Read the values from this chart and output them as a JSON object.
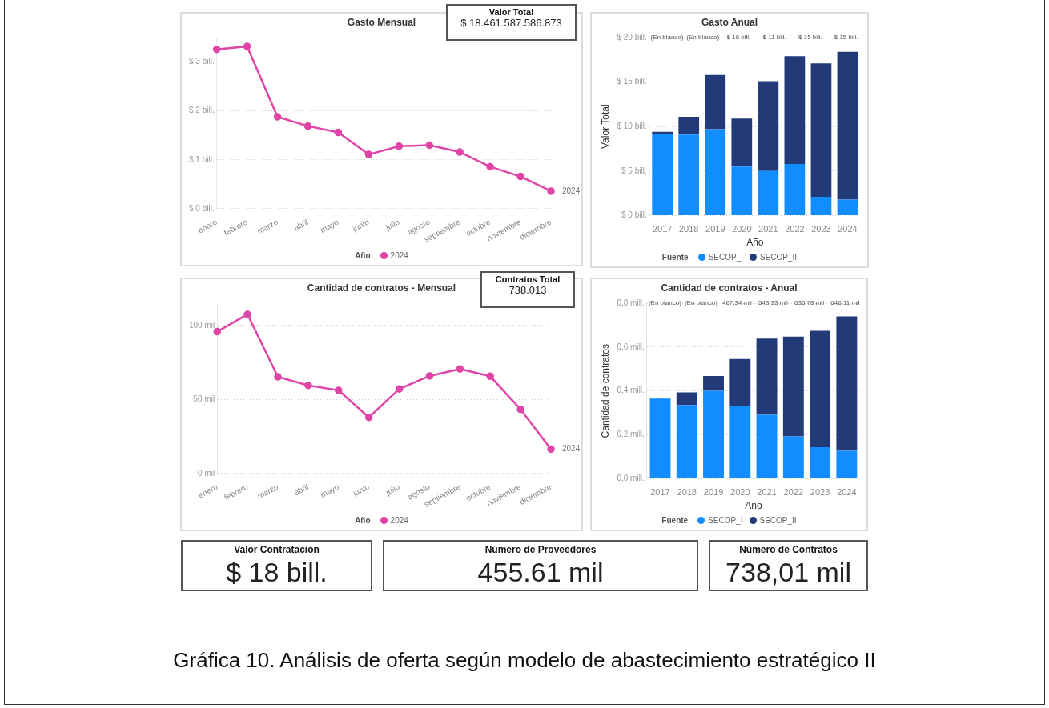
{
  "chart_data": [
    {
      "type": "line",
      "title": "Gasto Mensual",
      "categories": [
        "enero",
        "febrero",
        "marzo",
        "abril",
        "mayo",
        "junio",
        "julio",
        "agosto",
        "septiembre",
        "octubre",
        "noviembre",
        "diciembre"
      ],
      "series": [
        {
          "name": "2024",
          "color": "#e044a7",
          "values": [
            3.26,
            3.32,
            1.88,
            1.69,
            1.56,
            1.11,
            1.28,
            1.3,
            1.16,
            0.86,
            0.66,
            0.36
          ]
        }
      ],
      "ylim": [
        0,
        3.5
      ],
      "yticks": [
        {
          "value": 0,
          "label": "$ 0 bill."
        },
        {
          "value": 1,
          "label": "$ 1 bill."
        },
        {
          "value": 2,
          "label": "$ 2 bill."
        },
        {
          "value": 3,
          "label": "$ 3 bill."
        }
      ],
      "grid": "y",
      "marker": "circle",
      "legend": "bottom",
      "legend_title": "Año"
    },
    {
      "type": "other",
      "title": "Valor Total",
      "annotations": [
        "$ 18.461.587.586.873"
      ]
    },
    {
      "type": "bar",
      "title": "Gasto Anual",
      "categories": [
        "2017",
        "2018",
        "2019",
        "2020",
        "2021",
        "2022",
        "2023",
        "2024"
      ],
      "stacked": true,
      "series": [
        {
          "name": "SECOP_I",
          "color": "#118dff",
          "values": [
            9.2,
            9.1,
            9.7,
            5.5,
            5.0,
            5.8,
            2.1,
            1.8
          ]
        },
        {
          "name": "SECOP_II",
          "color": "#223a78",
          "values": [
            0.2,
            2.0,
            6.1,
            5.4,
            10.1,
            12.1,
            15.0,
            16.6
          ]
        }
      ],
      "ylim": [
        0,
        20
      ],
      "yticks": [
        {
          "value": 0,
          "label": "$ 0 bill."
        },
        {
          "value": 5,
          "label": "$ 5 bill."
        },
        {
          "value": 10,
          "label": "$ 10 bill."
        },
        {
          "value": 15,
          "label": "$ 15 bill."
        },
        {
          "value": 20,
          "label": "$ 20 bill."
        }
      ],
      "xlabel": "Año",
      "ylabel": "Valor Total",
      "grid": "y",
      "legend": "bottom",
      "legend_title": "Fuente",
      "annotations": [
        "(En blanco)",
        "(En blanco)",
        "$ 16 bill.",
        "$ 11 bill.",
        "$ 15 bill.",
        "$ 15 bill."
      ]
    },
    {
      "type": "line",
      "title": "Cantidad de contratos - Mensual",
      "categories": [
        "enero",
        "febrero",
        "marzo",
        "abril",
        "mayo",
        "junio",
        "julio",
        "agosto",
        "septiembre",
        "octubre",
        "noviembre",
        "diciembre"
      ],
      "series": [
        {
          "name": "2024",
          "color": "#e044a7",
          "values": [
            95.8,
            107.5,
            65.3,
            59.5,
            56.2,
            37.9,
            57.1,
            65.9,
            70.6,
            65.7,
            43.3,
            16.5
          ]
        }
      ],
      "ylim": [
        0,
        115
      ],
      "yticks": [
        {
          "value": 0,
          "label": "0 mil"
        },
        {
          "value": 50,
          "label": "50 mil"
        },
        {
          "value": 100,
          "label": "100 mil"
        }
      ],
      "grid": "y",
      "marker": "circle",
      "legend": "bottom",
      "legend_title": "Año"
    },
    {
      "type": "other",
      "title": "Contratos Total",
      "annotations": [
        "738.013"
      ]
    },
    {
      "type": "bar",
      "title": "Cantidad de contratos - Anual",
      "categories": [
        "2017",
        "2018",
        "2019",
        "2020",
        "2021",
        "2022",
        "2023",
        "2024"
      ],
      "stacked": true,
      "series": [
        {
          "name": "SECOP_I",
          "color": "#118dff",
          "values": [
            0.365,
            0.336,
            0.401,
            0.332,
            0.291,
            0.193,
            0.144,
            0.127
          ]
        },
        {
          "name": "SECOP_II",
          "color": "#223a78",
          "values": [
            0.005,
            0.057,
            0.067,
            0.214,
            0.348,
            0.455,
            0.53,
            0.613
          ]
        }
      ],
      "ylim": [
        0,
        0.8
      ],
      "yticks": [
        {
          "value": 0,
          "label": "0,0 mill."
        },
        {
          "value": 0.2,
          "label": "0,2 mill."
        },
        {
          "value": 0.4,
          "label": "0,4 mill."
        },
        {
          "value": 0.6,
          "label": "0,6 mill."
        },
        {
          "value": 0.8,
          "label": "0,8 mill."
        }
      ],
      "xlabel": "Año",
      "ylabel": "Cantidad de contratos",
      "grid": "y",
      "legend": "bottom",
      "legend_title": "Fuente",
      "annotations": [
        "(En blanco)",
        "(En blanco)",
        "467,34 mil",
        "543,33 mil",
        "636,78 mil",
        "646,11 mil"
      ]
    },
    {
      "type": "other",
      "title": "Valor Contratación",
      "annotations": [
        "$ 18 bill."
      ]
    },
    {
      "type": "other",
      "title": "Número de Proveedores",
      "annotations": [
        "455.61 mil"
      ]
    },
    {
      "type": "other",
      "title": "Número de Contratos",
      "annotations": [
        "738,01 mil"
      ]
    },
    {
      "type": "other",
      "title": "Gráfica 10. Análisis de oferta según modelo de abastecimiento estratégico II"
    }
  ]
}
